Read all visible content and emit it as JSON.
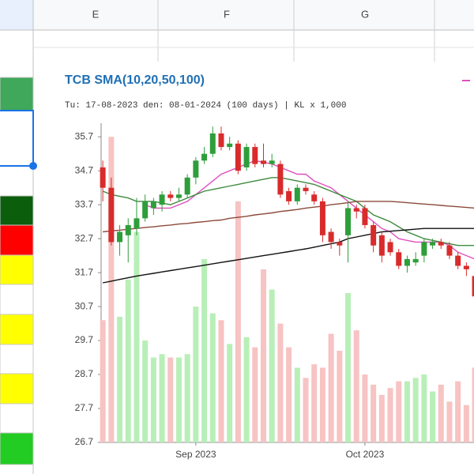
{
  "sheet": {
    "columns": [
      "E",
      "F",
      "G"
    ]
  },
  "chart_data": {
    "type": "candlestick",
    "title": "TCB SMA(10,20,50,100)",
    "subtitle": "Tu: 17-08-2023 den: 08-01-2024 (100 days) | KL x 1,000",
    "ylim": [
      26.7,
      36.1
    ],
    "yticks": [
      26.7,
      27.7,
      28.7,
      29.7,
      30.7,
      31.7,
      32.7,
      33.7,
      34.7,
      35.7
    ],
    "xlim": [
      -0.2,
      43.9
    ],
    "xticks": [
      {
        "value": 11,
        "label": "Sep 2023"
      },
      {
        "value": 31,
        "label": "Oct 2023"
      }
    ],
    "up_color": "#2e9e3a",
    "down_color": "#d92b2b",
    "volume_up_color": "#b8efb8",
    "volume_down_color": "#f7c3c3",
    "open": [
      34.8,
      34.2,
      32.6,
      32.8,
      33.0,
      33.3,
      33.6,
      33.7,
      34.0,
      33.9,
      34.0,
      34.5,
      35.0,
      35.2,
      35.8,
      35.4,
      35.5,
      34.8,
      35.4,
      35.0,
      34.9,
      34.9,
      34.1,
      33.8,
      34.2,
      34.0,
      33.8,
      32.9,
      32.6,
      32.8,
      33.6,
      33.6,
      33.1,
      32.8,
      32.6,
      32.3,
      31.9,
      32.0,
      32.2,
      32.5,
      32.6,
      32.5,
      32.2,
      31.9,
      31.6
    ],
    "high": [
      35.0,
      34.5,
      33.1,
      33.3,
      33.9,
      34.0,
      33.9,
      34.1,
      34.1,
      34.2,
      34.6,
      35.1,
      35.4,
      36.0,
      36.0,
      35.7,
      35.6,
      35.5,
      35.5,
      35.5,
      35.2,
      35.0,
      34.2,
      34.3,
      34.3,
      34.1,
      33.9,
      33.0,
      32.7,
      33.8,
      33.7,
      33.7,
      33.2,
      32.9,
      32.7,
      32.4,
      32.2,
      32.3,
      32.7,
      32.7,
      32.7,
      32.6,
      32.3,
      32.0,
      31.7
    ],
    "low": [
      33.8,
      32.5,
      32.2,
      32.0,
      32.8,
      33.2,
      33.4,
      33.5,
      33.8,
      33.8,
      33.9,
      34.3,
      34.9,
      35.1,
      35.3,
      35.3,
      34.6,
      34.7,
      34.8,
      34.8,
      34.8,
      33.9,
      33.7,
      33.7,
      34.0,
      33.7,
      32.6,
      32.4,
      32.2,
      32.0,
      33.3,
      33.0,
      32.3,
      32.0,
      32.2,
      31.8,
      31.7,
      31.9,
      32.0,
      32.4,
      32.4,
      32.1,
      31.8,
      31.6,
      30.8
    ],
    "close": [
      34.2,
      32.6,
      32.9,
      33.1,
      33.3,
      33.8,
      33.8,
      34.0,
      33.9,
      34.0,
      34.5,
      35.0,
      35.2,
      35.8,
      35.4,
      35.5,
      34.7,
      35.4,
      34.9,
      34.9,
      35.0,
      34.0,
      33.8,
      34.2,
      34.1,
      33.8,
      32.8,
      32.6,
      32.5,
      33.6,
      33.5,
      33.1,
      32.5,
      32.2,
      32.3,
      31.9,
      32.1,
      32.1,
      32.6,
      32.6,
      32.5,
      32.2,
      31.9,
      31.8,
      31.0
    ],
    "volume": [
      30.3,
      35.7,
      30.4,
      31.5,
      32.9,
      29.7,
      29.2,
      29.3,
      29.2,
      29.2,
      29.3,
      30.7,
      32.1,
      30.5,
      30.3,
      29.6,
      33.8,
      29.8,
      29.5,
      31.8,
      31.2,
      30.2,
      29.5,
      28.9,
      28.6,
      29.0,
      28.9,
      29.9,
      29.4,
      31.1,
      30.0,
      28.7,
      28.4,
      28.1,
      28.3,
      28.5,
      28.5,
      28.6,
      28.7,
      28.2,
      28.4,
      27.9,
      28.5,
      27.8,
      28.9
    ],
    "series": [
      {
        "color": "#e04fc0",
        "values": [
          null,
          null,
          null,
          null,
          null,
          33.7,
          33.6,
          33.6,
          33.6,
          33.7,
          33.8,
          34.0,
          34.2,
          34.4,
          34.6,
          34.7,
          34.8,
          34.9,
          35.0,
          34.95,
          34.9,
          34.8,
          34.7,
          34.6,
          34.6,
          34.4,
          34.3,
          34.2,
          34.0,
          33.8,
          33.6,
          33.4,
          33.2,
          33.0,
          32.9,
          32.7,
          32.65,
          32.6,
          32.6,
          32.6,
          32.6,
          32.5,
          32.3,
          32.2,
          32.1
        ]
      },
      {
        "color": "#3f8a3f",
        "values": [
          34.1,
          34.0,
          33.95,
          33.9,
          33.8,
          33.8,
          33.8,
          33.75,
          33.7,
          33.8,
          33.9,
          34.0,
          34.1,
          34.15,
          34.2,
          34.25,
          34.3,
          34.35,
          34.4,
          34.45,
          34.5,
          34.5,
          34.45,
          34.4,
          34.35,
          34.3,
          34.2,
          34.1,
          34.0,
          33.9,
          33.8,
          33.6,
          33.4,
          33.3,
          33.2,
          33.05,
          32.9,
          32.8,
          32.7,
          32.65,
          32.6,
          32.55,
          32.5,
          32.5,
          32.5
        ]
      },
      {
        "color": "#8b4a3a",
        "values": [
          32.9,
          32.93,
          32.95,
          32.98,
          33.0,
          33.03,
          33.05,
          33.08,
          33.1,
          33.13,
          33.15,
          33.18,
          33.2,
          33.23,
          33.25,
          33.3,
          33.33,
          33.36,
          33.4,
          33.43,
          33.46,
          33.5,
          33.53,
          33.56,
          33.6,
          33.63,
          33.66,
          33.7,
          33.73,
          33.76,
          33.8,
          33.8,
          33.8,
          33.8,
          33.8,
          33.78,
          33.76,
          33.74,
          33.72,
          33.7,
          33.68,
          33.66,
          33.64,
          33.62,
          33.6
        ]
      },
      {
        "color": "#111111",
        "values": [
          31.4,
          31.45,
          31.5,
          31.55,
          31.6,
          31.64,
          31.68,
          31.72,
          31.76,
          31.8,
          31.84,
          31.88,
          31.92,
          31.96,
          32.0,
          32.04,
          32.08,
          32.12,
          32.16,
          32.2,
          32.24,
          32.28,
          32.32,
          32.36,
          32.4,
          32.45,
          32.5,
          32.55,
          32.6,
          32.7,
          32.75,
          32.8,
          32.85,
          32.9,
          32.92,
          32.94,
          32.96,
          32.98,
          33.0,
          33.0,
          33.0,
          33.0,
          33.0,
          33.0,
          33.0
        ]
      }
    ]
  }
}
